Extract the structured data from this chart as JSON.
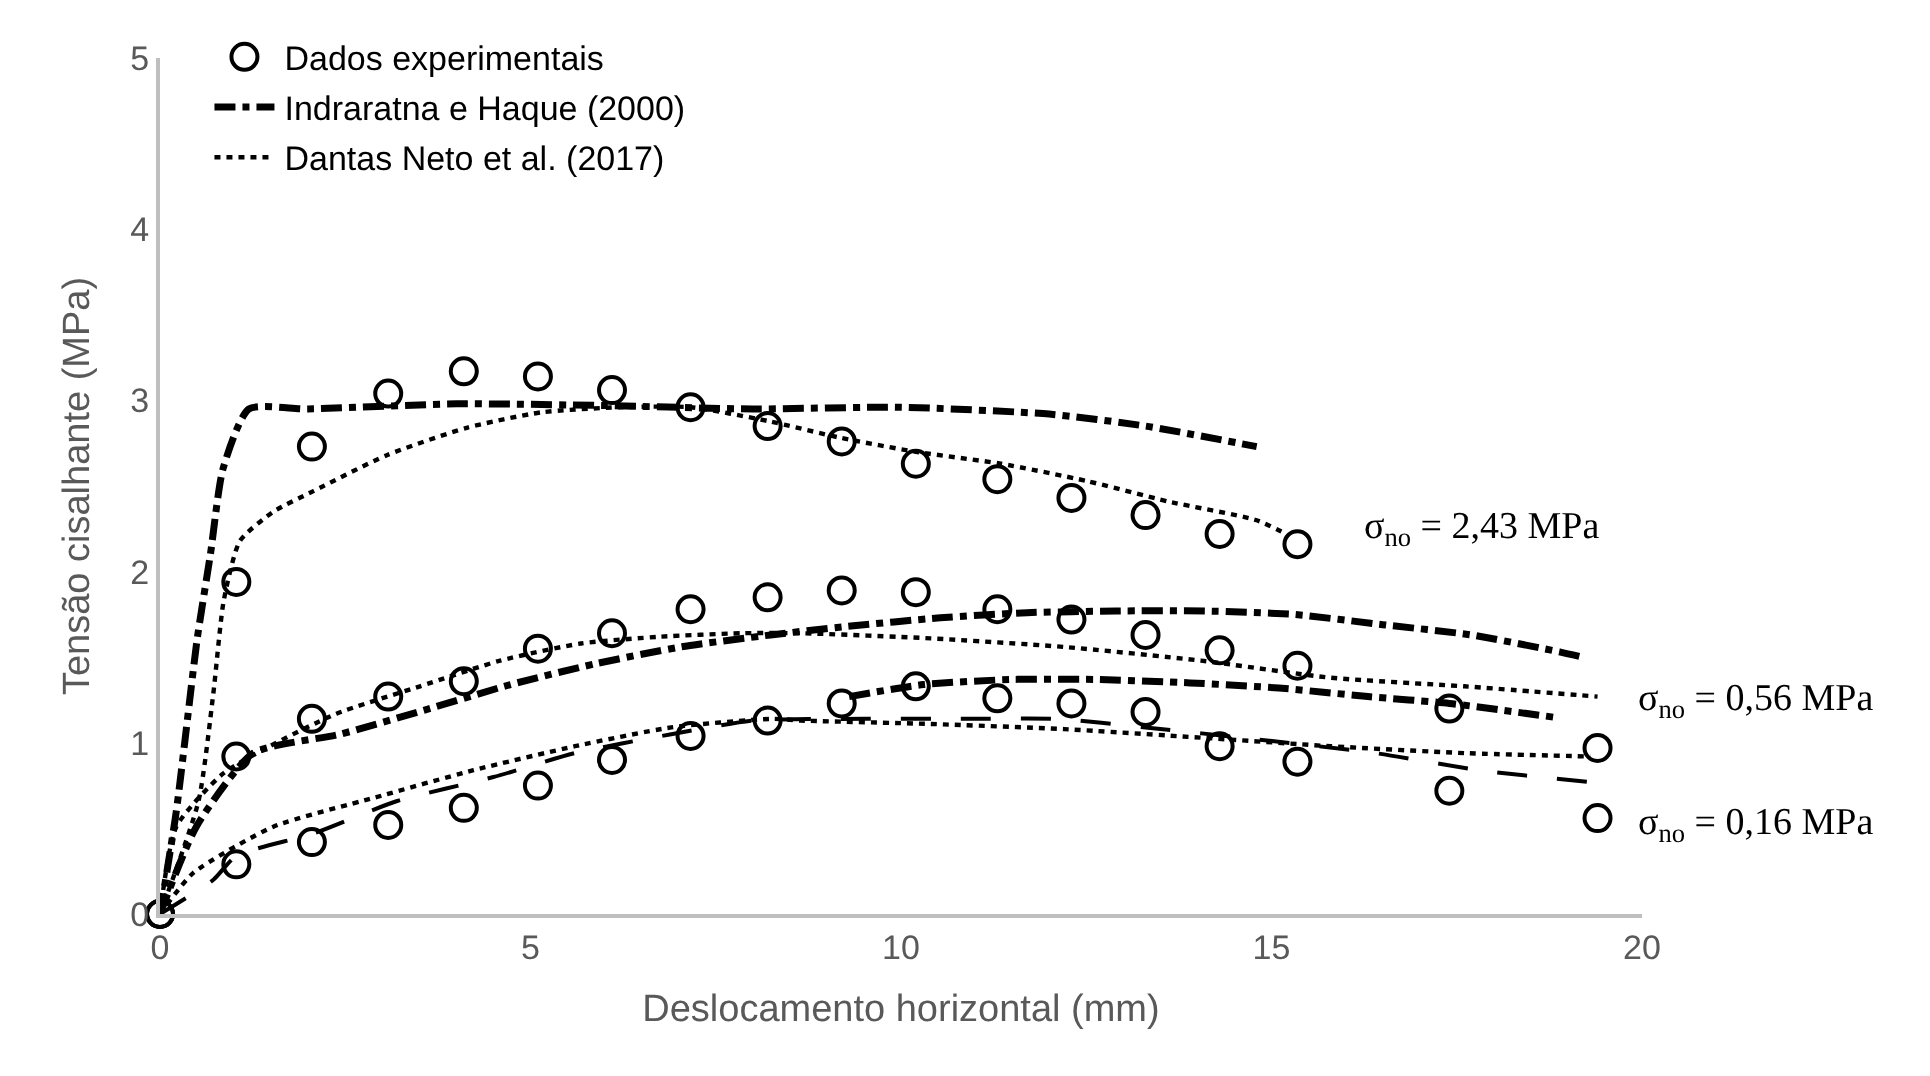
{
  "chart_data": {
    "type": "line",
    "xlabel": "Deslocamento horizontal (mm)",
    "ylabel": "Tensão cisalhante (MPa)",
    "xlim": [
      0,
      20
    ],
    "xticks": [
      0,
      5,
      10,
      15,
      20
    ],
    "ylim": [
      0,
      5
    ],
    "yticks": [
      0,
      1,
      2,
      3,
      4,
      5
    ],
    "legend": "top left",
    "series": [
      {
        "type": "scatter",
        "name": "Dados experimentais",
        "color": "#000000",
        "marker": "circle",
        "x": [
          0,
          1.03,
          2.05,
          3.08,
          4.1,
          5.1,
          6.1,
          7.16,
          8.2,
          9.2,
          10.2,
          11.3,
          12.3,
          13.3,
          14.3,
          15.35
        ],
        "values": [
          0,
          1.94,
          2.73,
          3.04,
          3.17,
          3.14,
          3.06,
          2.96,
          2.85,
          2.76,
          2.63,
          2.54,
          2.43,
          2.33,
          2.22,
          2.16
        ]
      },
      {
        "type": "scatter",
        "color": "#000000",
        "marker": "circle",
        "x": [
          0,
          1.03,
          2.05,
          3.08,
          4.1,
          5.1,
          6.1,
          7.16,
          8.2,
          9.2,
          10.2,
          11.3,
          12.3,
          13.3,
          14.3,
          15.35,
          17.4,
          19.4
        ],
        "values": [
          0,
          0.92,
          1.14,
          1.27,
          1.36,
          1.55,
          1.64,
          1.78,
          1.85,
          1.89,
          1.88,
          1.78,
          1.72,
          1.63,
          1.54,
          1.45,
          1.2,
          0.97
        ]
      },
      {
        "type": "scatter",
        "color": "#000000",
        "marker": "circle",
        "x": [
          0,
          1.03,
          2.05,
          3.08,
          4.1,
          5.1,
          6.1,
          7.16,
          8.2,
          9.2,
          10.2,
          11.3,
          12.3,
          13.3,
          14.3,
          15.35,
          17.4,
          19.4
        ],
        "values": [
          0,
          0.29,
          0.42,
          0.52,
          0.62,
          0.75,
          0.9,
          1.04,
          1.13,
          1.23,
          1.33,
          1.26,
          1.23,
          1.18,
          0.98,
          0.89,
          0.72,
          0.56
        ]
      },
      {
        "name": "Indraratna e Haque (2000)",
        "color": "#000000",
        "line_style": "dashdot",
        "x": [
          0,
          0.22,
          0.5,
          0.68,
          0.85,
          1.2,
          2,
          4,
          6,
          8,
          10,
          12,
          13.3,
          14.8
        ],
        "values": [
          0,
          0.6,
          1.6,
          2.1,
          2.6,
          2.95,
          2.95,
          2.98,
          2.97,
          2.95,
          2.96,
          2.92,
          2.85,
          2.73
        ]
      },
      {
        "type": "line",
        "color": "#000000",
        "line_style": "dashdot",
        "x": [
          0,
          0.49,
          1.26,
          2.43,
          3.56,
          4.73,
          5.86,
          7.03,
          8.24,
          9.28,
          10.53,
          11.7,
          12.9,
          14.1,
          15.3,
          16.5,
          17.7,
          18.9,
          19.2
        ],
        "values": [
          0,
          0.51,
          0.94,
          1.05,
          1.19,
          1.34,
          1.46,
          1.56,
          1.63,
          1.68,
          1.73,
          1.76,
          1.77,
          1.77,
          1.75,
          1.69,
          1.63,
          1.53,
          1.5
        ]
      },
      {
        "type": "line",
        "color": "#000000",
        "line_style": "dashdot",
        "x": [
          9.3,
          10.3,
          11.5,
          12.6,
          13.9,
          15.1,
          16.3,
          17.4,
          18.8
        ],
        "values": [
          1.27,
          1.34,
          1.37,
          1.37,
          1.35,
          1.32,
          1.27,
          1.23,
          1.15
        ]
      },
      {
        "type": "line",
        "color": "#000000",
        "line_style": "dashed",
        "x": [
          0,
          0.72,
          1.03,
          2.07,
          3.2,
          4.5,
          5.6,
          6.9,
          8.0,
          9.5,
          10.8,
          12.1,
          13.3,
          14.8,
          16.4,
          17.8,
          19.3
        ],
        "values": [
          0,
          0.2,
          0.34,
          0.47,
          0.66,
          0.8,
          0.94,
          1.05,
          1.13,
          1.14,
          1.14,
          1.14,
          1.09,
          1.02,
          0.94,
          0.84,
          0.77
        ]
      },
      {
        "type": "line",
        "name": "Dantas Neto et al. (2017)",
        "color": "#000000",
        "line_style": "dotted",
        "x": [
          0,
          0.52,
          0.72,
          0.86,
          1.08,
          1.53,
          2.07,
          3.06,
          4.14,
          5.14,
          6.2,
          7.16,
          8.2,
          9.2,
          10.2,
          11.35,
          12.5,
          13.6,
          14.8,
          15.2
        ],
        "values": [
          0,
          0.66,
          1.29,
          1.83,
          2.18,
          2.35,
          2.47,
          2.68,
          2.84,
          2.93,
          2.96,
          2.96,
          2.88,
          2.78,
          2.7,
          2.63,
          2.53,
          2.41,
          2.3,
          2.22
        ]
      },
      {
        "type": "line",
        "color": "#000000",
        "line_style": "dotted",
        "x": [
          0,
          0.22,
          0.85,
          1.48,
          2.38,
          3.51,
          4.59,
          5.68,
          6.76,
          7.84,
          8.65,
          10.4,
          12.2,
          14.05,
          15.8,
          17.6,
          19.4
        ],
        "values": [
          0,
          0.51,
          0.82,
          0.98,
          1.17,
          1.33,
          1.48,
          1.58,
          1.62,
          1.64,
          1.64,
          1.61,
          1.56,
          1.48,
          1.38,
          1.33,
          1.27
        ]
      },
      {
        "type": "line",
        "color": "#000000",
        "line_style": "dotted",
        "x": [
          0,
          0.45,
          1.53,
          2.9,
          4.23,
          5.6,
          6.9,
          8.26,
          8.65,
          10.4,
          12.2,
          14.05,
          15.8,
          17.6,
          19.3
        ],
        "values": [
          0,
          0.24,
          0.51,
          0.68,
          0.84,
          0.98,
          1.09,
          1.14,
          1.13,
          1.11,
          1.08,
          1.03,
          0.98,
          0.94,
          0.92
        ]
      }
    ],
    "annotations": [
      "σ$_{no}$ = 2,43 MPa",
      "σ$_{no}$ = 0,56 MPa",
      "σ$_{no}$ = 0,16 MPa"
    ]
  }
}
